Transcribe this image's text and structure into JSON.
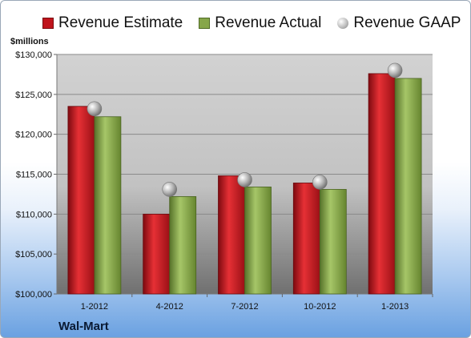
{
  "chart_data": {
    "type": "bar",
    "unit_label": "$millions",
    "company": "Wal-Mart",
    "categories": [
      "1-2012",
      "4-2012",
      "7-2012",
      "10-2012",
      "1-2013"
    ],
    "series": [
      {
        "name": "Revenue Estimate",
        "kind": "bar",
        "color": "#c0141c",
        "values": [
          123500,
          110000,
          114800,
          113900,
          127600
        ]
      },
      {
        "name": "Revenue Actual",
        "kind": "bar",
        "color": "#86a64a",
        "values": [
          122200,
          112200,
          113400,
          113100,
          127000
        ]
      },
      {
        "name": "Revenue GAAP",
        "kind": "marker",
        "color": "#a8a8a8",
        "values": [
          123200,
          113100,
          114300,
          114000,
          128000
        ]
      }
    ],
    "ylim": [
      100000,
      130000
    ],
    "yticks": [
      "$100,000",
      "$105,000",
      "$110,000",
      "$115,000",
      "$120,000",
      "$125,000",
      "$130,000"
    ],
    "grid": true,
    "legend_position": "top"
  }
}
